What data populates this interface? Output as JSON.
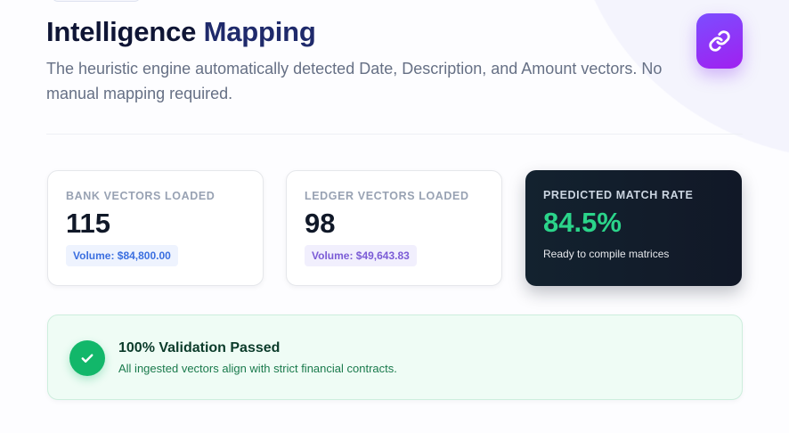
{
  "header": {
    "title_part1": "Intelligence",
    "title_part2": "Mapping",
    "subtitle": "The heuristic engine automatically detected Date, Description, and Amount vectors. No manual mapping required.",
    "icon": "link-icon"
  },
  "stats": [
    {
      "label": "BANK VECTORS LOADED",
      "value": "115",
      "volume": "Volume: $84,800.00",
      "color": "#3b6fe0",
      "bg": "#eef3fe"
    },
    {
      "label": "LEDGER VECTORS LOADED",
      "value": "98",
      "volume": "Volume: $49,643.83",
      "color": "#7b5cd6",
      "bg": "#f1effd"
    },
    {
      "label": "PREDICTED MATCH RATE",
      "value": "84.5%",
      "note": "Ready to compile matrices"
    }
  ],
  "validation": {
    "title": "100% Validation Passed",
    "message": "All ingested vectors align with strict financial contracts.",
    "icon": "check-icon"
  }
}
